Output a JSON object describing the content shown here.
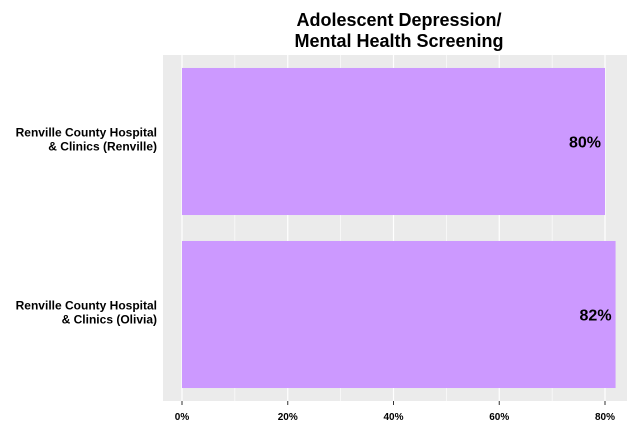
{
  "chart_data": {
    "type": "bar",
    "orientation": "horizontal",
    "title": [
      "Adolescent Depression/",
      "Mental Health Screening"
    ],
    "categories": [
      [
        "Renville County Hospital",
        "& Clinics (Renville)"
      ],
      [
        "Renville County Hospital",
        "& Clinics (Olivia)"
      ]
    ],
    "values": [
      80,
      82
    ],
    "data_labels": [
      "80%",
      "82%"
    ],
    "xlim": [
      0,
      82
    ],
    "xticks": [
      0,
      20,
      40,
      60,
      80
    ],
    "xtick_labels": [
      "0%",
      "20%",
      "40%",
      "60%",
      "80%"
    ],
    "grid": true,
    "legend": "none",
    "colors": {
      "bar": "#cc99ff",
      "panel": "#ebebeb",
      "grid": "#ffffff"
    }
  }
}
